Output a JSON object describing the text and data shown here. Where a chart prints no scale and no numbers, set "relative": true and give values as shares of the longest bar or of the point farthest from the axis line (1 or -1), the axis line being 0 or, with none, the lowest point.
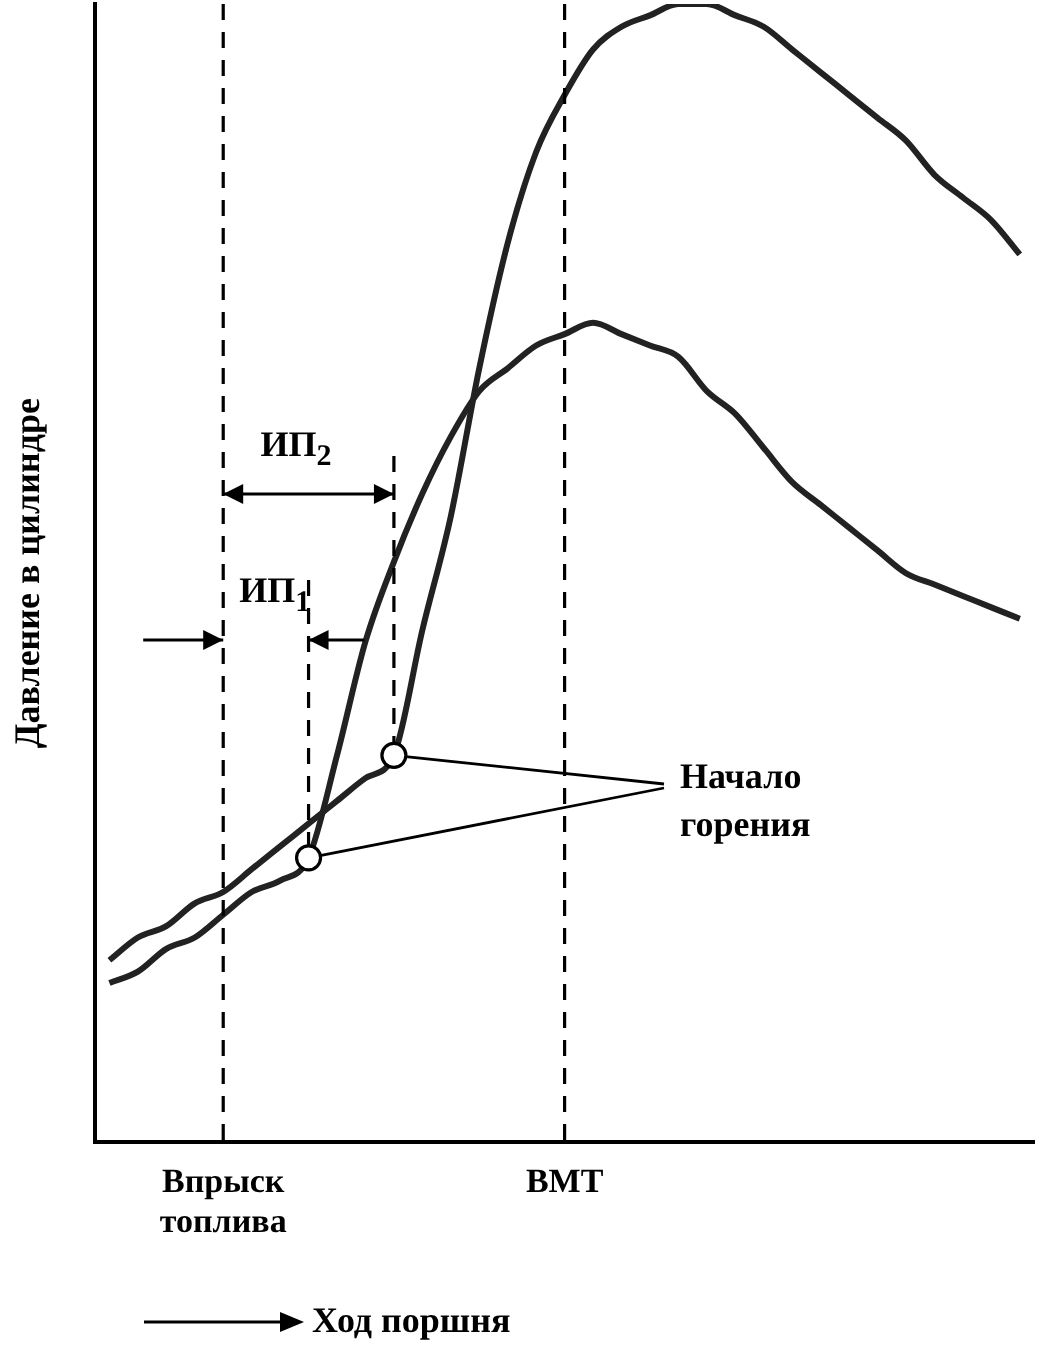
{
  "chart_data": {
    "type": "line",
    "relative": true,
    "xlabel": "Ход поршня",
    "ylabel": "Давление в цилиндре",
    "categories": [
      null,
      null,
      null,
      null,
      "Впрыск топлива",
      null,
      null,
      null,
      null,
      null,
      null,
      null,
      null,
      null,
      null,
      null,
      "ВМТ",
      null,
      null,
      null,
      null,
      null,
      null,
      null,
      null,
      null,
      null,
      null,
      null,
      null,
      null,
      null,
      null
    ],
    "series": [
      {
        "color": "#222222",
        "values": [
          0.16,
          0.18,
          0.19,
          0.21,
          0.22,
          0.24,
          0.26,
          0.28,
          0.3,
          0.32,
          0.34,
          0.45,
          0.55,
          0.68,
          0.79,
          0.87,
          0.92,
          0.96,
          0.98,
          0.99,
          1,
          1,
          0.99,
          0.98,
          0.96,
          0.94,
          0.92,
          0.9,
          0.88,
          0.85,
          0.83,
          0.81,
          0.78
        ]
      },
      {
        "color": "#222222",
        "values": [
          0.14,
          0.15,
          0.17,
          0.18,
          0.2,
          0.22,
          0.23,
          0.25,
          0.34,
          0.44,
          0.51,
          0.57,
          0.62,
          0.66,
          0.68,
          0.7,
          0.71,
          0.72,
          0.71,
          0.7,
          0.69,
          0.66,
          0.64,
          0.61,
          0.58,
          0.56,
          0.54,
          0.52,
          0.5,
          0.49,
          0.48,
          0.47,
          0.46
        ]
      }
    ],
    "ref_lines": [
      {
        "axis": "x",
        "value": "Впрыск топлива",
        "line_style": "dashed"
      },
      {
        "axis": "x",
        "value": "ВМТ",
        "line_style": "dashed"
      }
    ],
    "annotations": [
      "ИП$_{2}$",
      "ИП$_{1}$",
      "Начало горения"
    ],
    "marker": "none",
    "line_style": "solid",
    "grid": false,
    "legend": false
  }
}
